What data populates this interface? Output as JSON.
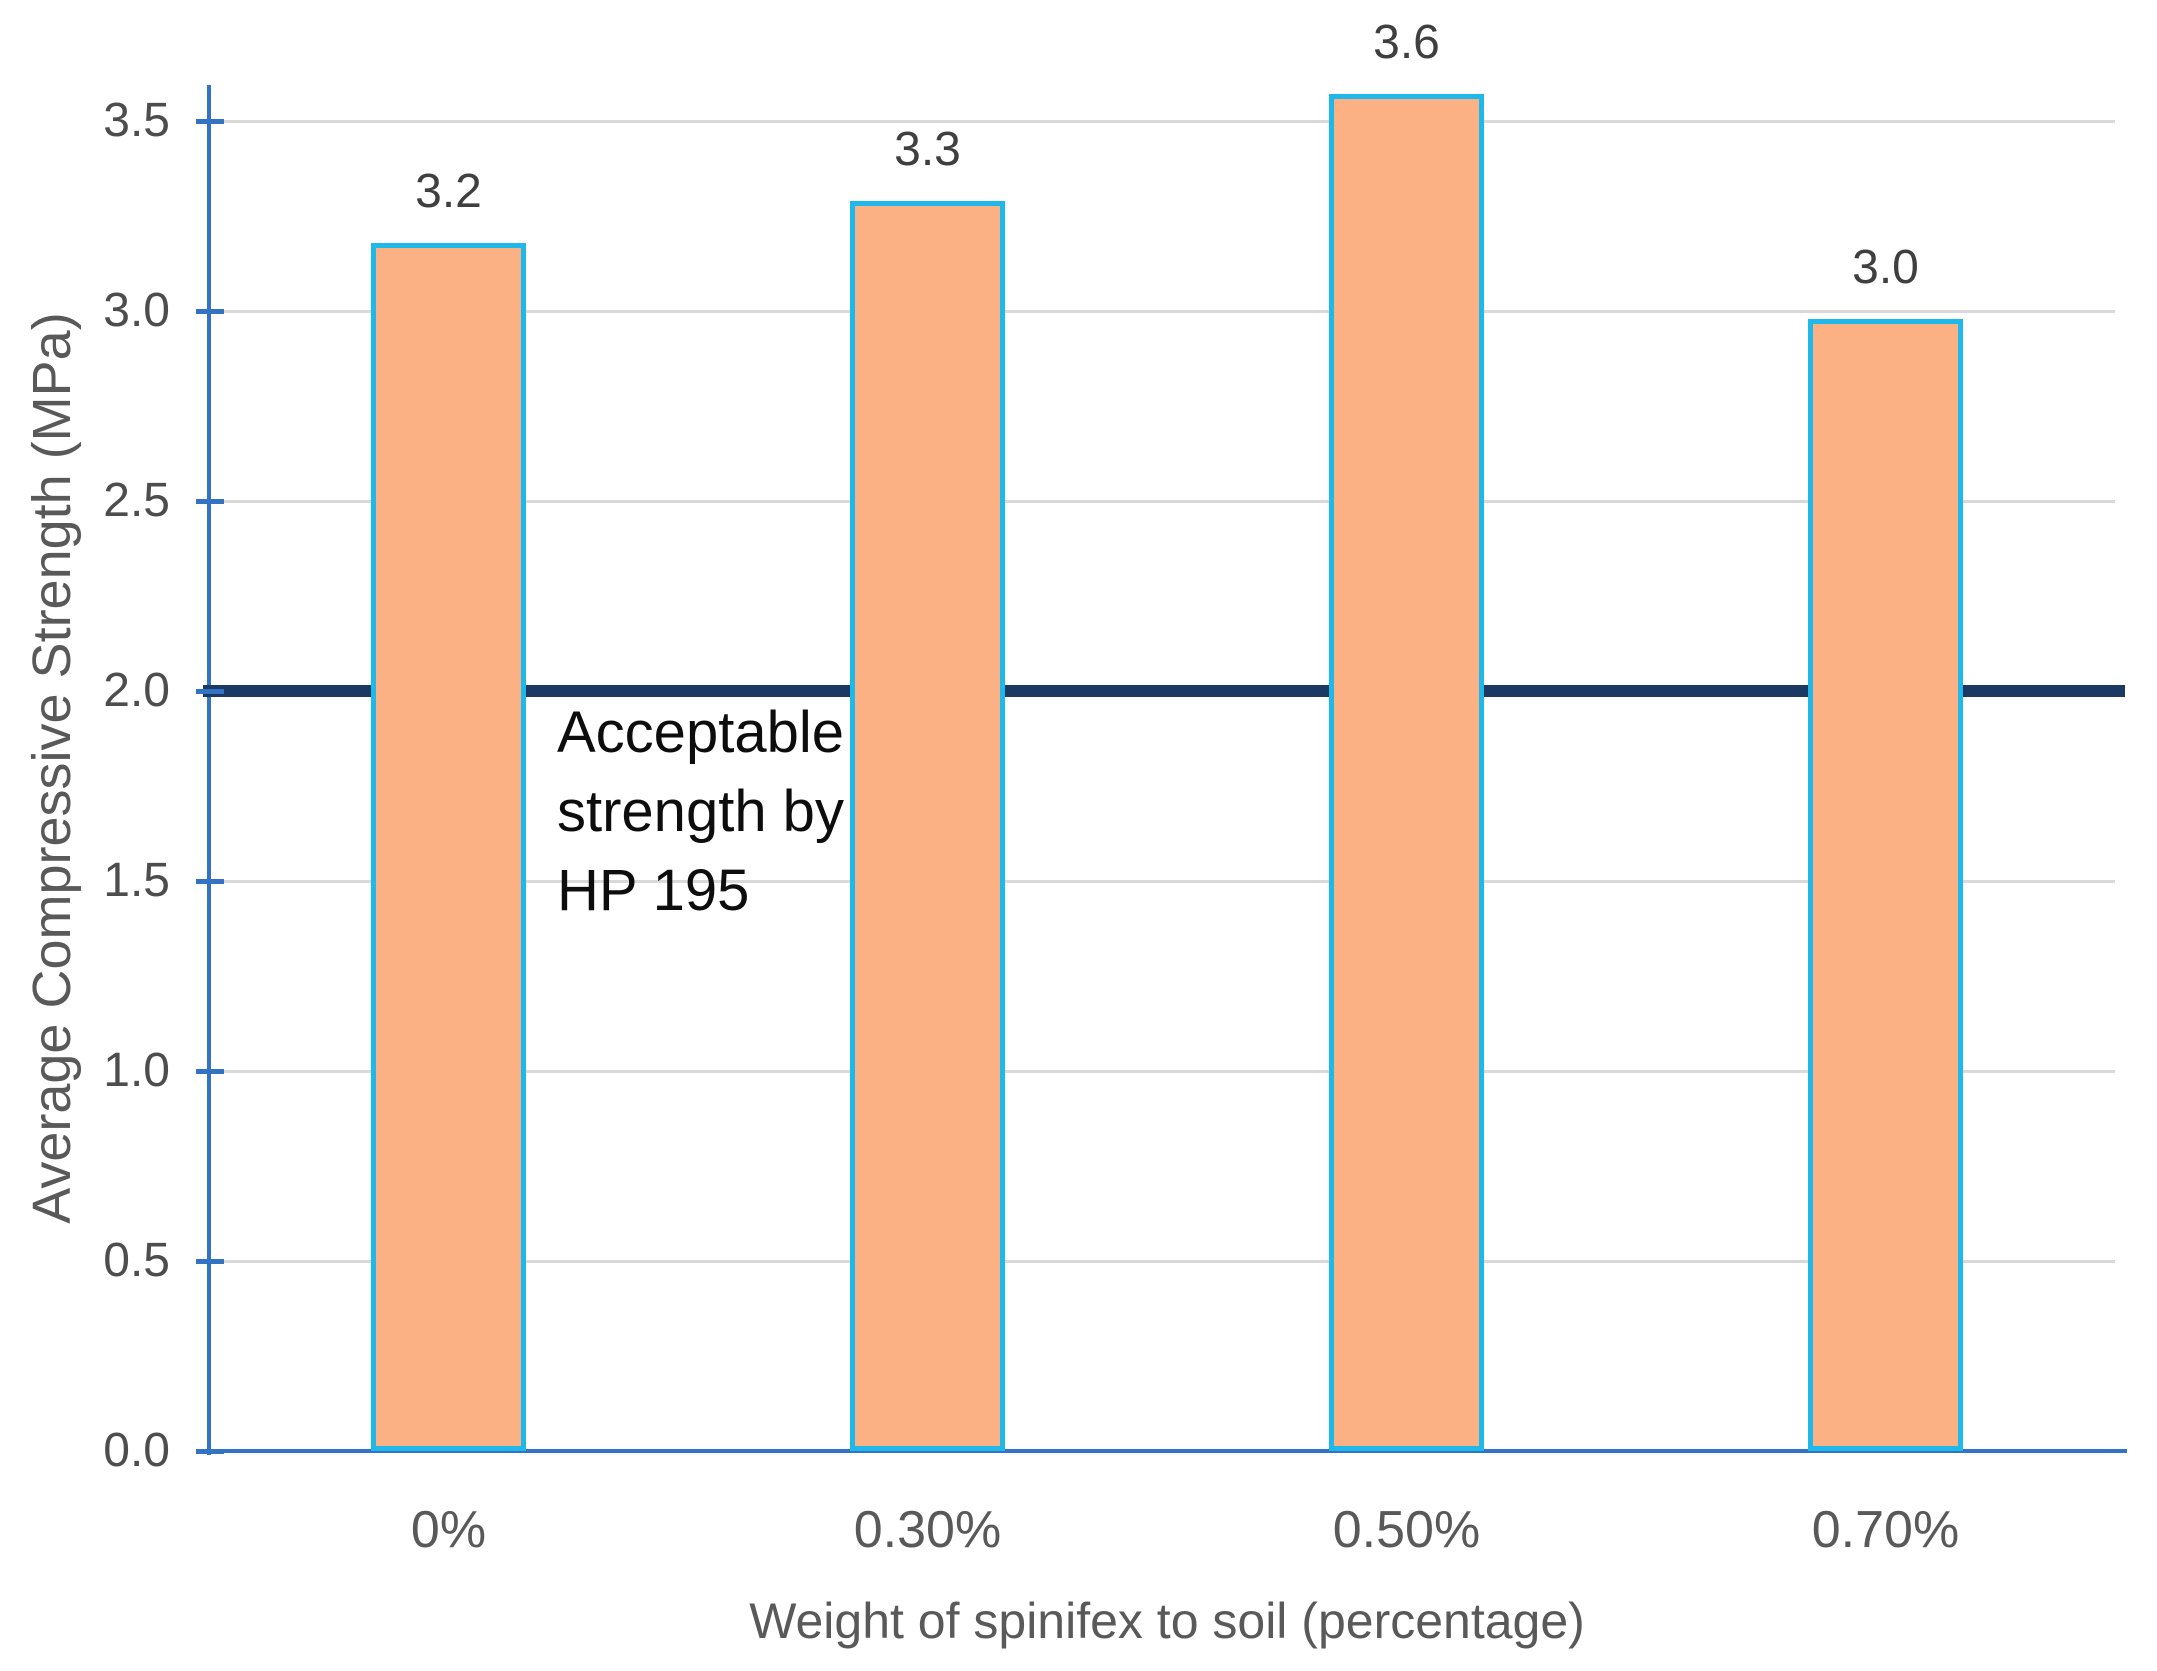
{
  "chart_data": {
    "type": "bar",
    "title": "",
    "categories": [
      "0%",
      "0.30%",
      "0.50%",
      "0.70%"
    ],
    "values": [
      3.2,
      3.3,
      3.6,
      3.0
    ],
    "data_labels": [
      "3.2",
      "3.3",
      "3.6",
      "3.0"
    ],
    "bar_heights_mpa": [
      3.18,
      3.29,
      3.57,
      2.98
    ],
    "xlabel": "Weight of spinifex to soil (percentage)",
    "ylabel": "Average Compressive Strength (MPa)",
    "ylim": [
      0,
      3.5
    ],
    "ytick_step": 0.5,
    "yticks": [
      "0.0",
      "0.5",
      "1.0",
      "1.5",
      "2.0",
      "2.5",
      "3.0",
      "3.5"
    ],
    "grid": true,
    "legend": "none",
    "threshold": {
      "value": 2.0,
      "label_lines": [
        "Acceptable",
        "strength by",
        "HP 195"
      ],
      "label_text": "Acceptable strength by HP 195"
    },
    "colors": {
      "bar_fill": "#FBB183",
      "bar_border": "#1FB8EA",
      "axis_line": "#3273C4",
      "gridline": "#D9D9D9",
      "threshold_line": "#1B3A63",
      "tick_label": "#4D4D4D",
      "axis_title": "#595959",
      "data_label": "#3F3F3F",
      "annotation_text": "#0D0D0D"
    }
  }
}
